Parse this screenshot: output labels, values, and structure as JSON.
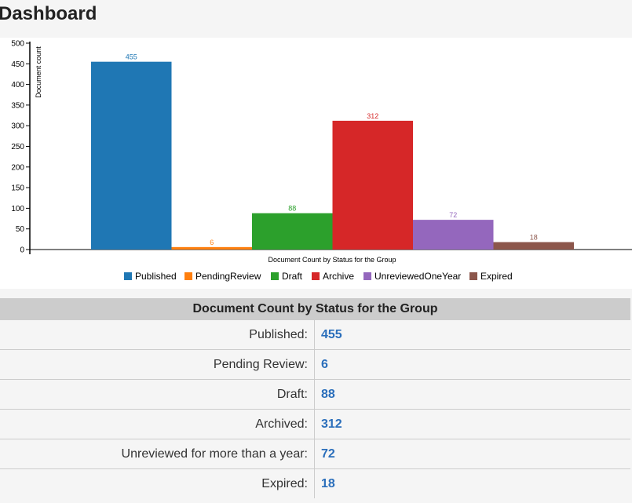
{
  "page_title": "Dashboard",
  "chart_data": {
    "type": "bar",
    "title": "Document Count by Status for the Group",
    "xlabel": "Document Count by Status for the Group",
    "ylabel": "Document count",
    "ylim": [
      0,
      500
    ],
    "yticks": [
      0,
      50,
      100,
      150,
      200,
      250,
      300,
      350,
      400,
      450,
      500
    ],
    "categories": [
      "Published",
      "PendingReview",
      "Draft",
      "Archive",
      "UnreviewedOneYear",
      "Expired"
    ],
    "values": [
      455,
      6,
      88,
      312,
      72,
      18
    ],
    "colors": [
      "#1f77b4",
      "#ff7f0e",
      "#2ca02c",
      "#d62728",
      "#9467bd",
      "#8c564b"
    ],
    "legend": "bottom"
  },
  "table": {
    "title": "Document Count by Status for the Group",
    "rows": [
      {
        "label": "Published:",
        "value": "455"
      },
      {
        "label": "Pending Review:",
        "value": "6"
      },
      {
        "label": "Draft:",
        "value": "88"
      },
      {
        "label": "Archived:",
        "value": "312"
      },
      {
        "label": "Unreviewed for more than a year:",
        "value": "72"
      },
      {
        "label": "Expired:",
        "value": "18"
      }
    ]
  }
}
